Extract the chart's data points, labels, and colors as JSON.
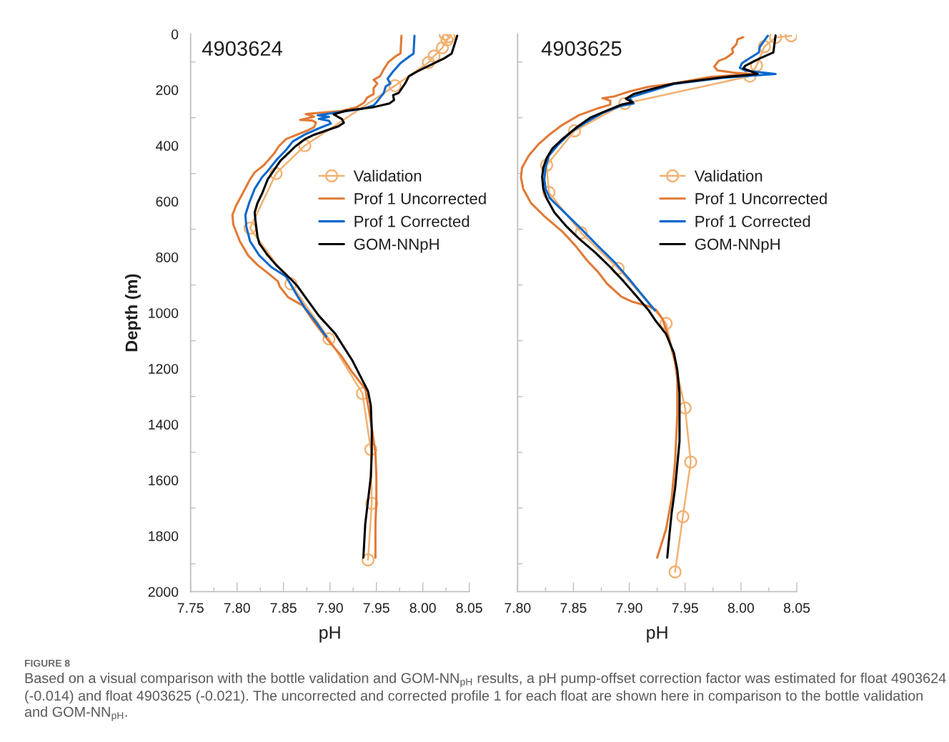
{
  "chart_data": [
    {
      "type": "line",
      "title": "4903624",
      "xlabel": "pH",
      "ylabel": "Depth (m)",
      "xlim": [
        7.75,
        8.05
      ],
      "ylim": [
        2000,
        0
      ],
      "legend": "right",
      "xticks": [
        {
          "value": 7.75,
          "label": "7.75"
        },
        {
          "value": 7.775,
          "label": null
        },
        {
          "value": 7.8,
          "label": "7.80"
        },
        {
          "value": 7.825,
          "label": null
        },
        {
          "value": 7.85,
          "label": "7.85"
        },
        {
          "value": 7.875,
          "label": null
        },
        {
          "value": 7.9,
          "label": "7.90"
        },
        {
          "value": 7.925,
          "label": null
        },
        {
          "value": 7.95,
          "label": "7.95"
        },
        {
          "value": 7.975,
          "label": null
        },
        {
          "value": 8.0,
          "label": "8.00"
        },
        {
          "value": 8.025,
          "label": null
        },
        {
          "value": 8.05,
          "label": "8.05"
        }
      ],
      "yticks": [
        0,
        {
          "value": 100,
          "label": null
        },
        200,
        {
          "value": 300,
          "label": null
        },
        400,
        {
          "value": 500,
          "label": null
        },
        600,
        {
          "value": 700,
          "label": null
        },
        800,
        {
          "value": 900,
          "label": null
        },
        1000,
        {
          "value": 1100,
          "label": null
        },
        1200,
        {
          "value": 1300,
          "label": null
        },
        1400,
        {
          "value": 1500,
          "label": null
        },
        1600,
        {
          "value": 1700,
          "label": null
        },
        1800,
        {
          "value": 1900,
          "label": null
        },
        2000
      ],
      "series": [
        {
          "name": "Validation",
          "color": "#f2b172",
          "marker": "circle",
          "x": [
            8.024,
            8.028,
            8.026,
            8.021,
            8.012,
            8.006,
            7.97,
            7.873,
            7.842,
            7.814,
            7.858,
            7.899,
            7.935,
            7.944,
            7.945,
            7.941
          ],
          "values": [
            0,
            9,
            21,
            49,
            79,
            102,
            185,
            400,
            500,
            696,
            896,
            1093,
            1289,
            1490,
            1683,
            1886
          ]
        },
        {
          "name": "Prof 1 Uncorrected",
          "color": "#e27a36",
          "x": [
            7.977,
            7.976,
            7.971,
            7.963,
            7.958,
            7.954,
            7.947,
            7.951,
            7.947,
            7.947,
            7.94,
            7.937,
            7.929,
            7.912,
            7.894,
            7.874,
            7.883,
            7.868,
            7.881,
            7.885,
            7.883,
            7.875,
            7.853,
            7.845,
            7.84,
            7.829,
            7.819,
            7.814,
            7.806,
            7.799,
            7.795,
            7.796,
            7.803,
            7.812,
            7.822,
            7.835,
            7.844,
            7.846,
            7.855,
            7.871,
            7.883,
            7.899,
            7.912,
            7.924,
            7.938,
            7.942,
            7.946,
            7.949,
            7.95,
            7.95,
            7.949,
            7.949
          ],
          "values": [
            6,
            69,
            79,
            100,
            126,
            151,
            164,
            177,
            194,
            215,
            228,
            245,
            262,
            276,
            281,
            287,
            296,
            308,
            310,
            317,
            334,
            347,
            376,
            402,
            428,
            470,
            496,
            521,
            572,
            615,
            649,
            683,
            743,
            794,
            828,
            862,
            887,
            906,
            944,
            974,
            1033,
            1102,
            1153,
            1213,
            1272,
            1349,
            1434,
            1503,
            1588,
            1673,
            1758,
            1878
          ]
        },
        {
          "name": "Prof 1 Corrected",
          "color": "#0a68cc",
          "x": [
            7.991,
            7.99,
            7.986,
            7.976,
            7.968,
            7.962,
            7.965,
            7.96,
            7.958,
            7.954,
            7.95,
            7.947,
            7.935,
            7.919,
            7.904,
            7.887,
            7.899,
            7.888,
            7.899,
            7.901,
            7.888,
            7.873,
            7.86,
            7.853,
            7.842,
            7.833,
            7.827,
            7.819,
            7.813,
            7.809,
            7.81,
            7.814,
            7.824,
            7.837,
            7.853,
            7.865,
            7.873,
            7.885,
            7.896
          ],
          "values": [
            6,
            70,
            79,
            104,
            134,
            160,
            177,
            188,
            211,
            228,
            245,
            256,
            268,
            276,
            283,
            291,
            297,
            304,
            311,
            321,
            338,
            360,
            385,
            415,
            453,
            491,
            513,
            555,
            606,
            649,
            691,
            743,
            794,
            836,
            870,
            940,
            982,
            1033,
            1085
          ]
        },
        {
          "name": "GOM-NNpH",
          "color": "#000000",
          "x": [
            8.037,
            8.031,
            8.023,
            7.994,
            7.985,
            7.981,
            7.974,
            7.968,
            7.969,
            7.964,
            7.947,
            7.917,
            7.904,
            7.913,
            7.915,
            7.909,
            7.883,
            7.873,
            7.863,
            7.855,
            7.847,
            7.84,
            7.833,
            7.827,
            7.822,
            7.819,
            7.82,
            7.822,
            7.824,
            7.832,
            7.842,
            7.858,
            7.865,
            7.876,
            7.888,
            7.906,
            7.924,
            7.941,
            7.944,
            7.945,
            7.945,
            7.944,
            7.941,
            7.938,
            7.936
          ],
          "values": [
            6,
            70,
            87,
            134,
            151,
            177,
            211,
            219,
            237,
            249,
            262,
            275,
            288,
            305,
            318,
            331,
            361,
            377,
            402,
            428,
            453,
            487,
            521,
            572,
            606,
            640,
            674,
            726,
            751,
            789,
            828,
            879,
            904,
            955,
            1010,
            1076,
            1170,
            1281,
            1332,
            1417,
            1503,
            1588,
            1673,
            1758,
            1878
          ]
        }
      ],
      "annotations": [
        "FIGURE 8",
        "Based on a visual comparison with the bottle validation and GOM-NN$_{pH}$ results, a pH pump-offset correction factor was estimated for float 4903624 (-0.014) and float 4903625 (-0.021). The uncorrected and corrected profile 1 for each float are shown here in comparison to the bottle validation and GOM-NN$_{pH}$."
      ]
    },
    {
      "type": "line",
      "title": "4903625",
      "xlabel": "pH",
      "xlim": [
        7.8,
        8.05
      ],
      "ylim": [
        2000,
        0
      ],
      "legend": "right",
      "tick_labels": "x",
      "xticks": [
        {
          "value": 7.8,
          "label": "7.80"
        },
        {
          "value": 7.825,
          "label": null
        },
        {
          "value": 7.85,
          "label": "7.85"
        },
        {
          "value": 7.875,
          "label": null
        },
        {
          "value": 7.9,
          "label": "7.90"
        },
        {
          "value": 7.925,
          "label": null
        },
        {
          "value": 7.95,
          "label": "7.95"
        },
        {
          "value": 7.975,
          "label": null
        },
        {
          "value": 8.0,
          "label": "8.00"
        },
        {
          "value": 8.025,
          "label": null
        },
        {
          "value": 8.05,
          "label": "8.05"
        }
      ],
      "yticks": [
        {
          "value": 100,
          "label": null
        },
        {
          "value": 300,
          "label": null
        },
        {
          "value": 500,
          "label": null
        },
        {
          "value": 700,
          "label": null
        },
        {
          "value": 900,
          "label": null
        },
        {
          "value": 1100,
          "label": null
        },
        {
          "value": 1300,
          "label": null
        },
        {
          "value": 1500,
          "label": null
        },
        {
          "value": 1700,
          "label": null
        },
        {
          "value": 1900,
          "label": null
        }
      ],
      "series": [
        {
          "name": "Validation",
          "color": "#f2b172",
          "marker": "circle",
          "x": [
            8.045,
            8.031,
            8.021,
            8.014,
            8.008,
            7.896,
            7.851,
            7.826,
            7.828,
            7.857,
            7.89,
            7.933,
            7.95,
            7.955,
            7.948,
            7.941
          ],
          "values": [
            6,
            12,
            45,
            113,
            151,
            249,
            347,
            470,
            568,
            713,
            840,
            1038,
            1341,
            1535,
            1731,
            1929
          ]
        },
        {
          "name": "Prof 1 Uncorrected",
          "color": "#e27a36",
          "x": [
            8.002,
            7.997,
            7.996,
            7.992,
            7.993,
            7.989,
            7.986,
            7.98,
            7.976,
            7.979,
            7.993,
            8.008,
            7.972,
            7.94,
            7.917,
            7.9,
            7.887,
            7.876,
            7.883,
            7.883,
            7.872,
            7.855,
            7.84,
            7.829,
            7.819,
            7.81,
            7.804,
            7.803,
            7.805,
            7.812,
            7.825,
            7.84,
            7.852,
            7.862,
            7.872,
            7.88,
            7.893,
            7.902,
            7.917,
            7.924,
            7.93,
            7.936,
            7.941,
            7.943,
            7.943,
            7.941,
            7.938,
            7.933,
            7.925
          ],
          "values": [
            11,
            19,
            36,
            53,
            66,
            79,
            87,
            96,
            117,
            130,
            138,
            143,
            154,
            177,
            189,
            206,
            223,
            230,
            239,
            253,
            266,
            291,
            326,
            359,
            394,
            436,
            479,
            513,
            555,
            606,
            657,
            708,
            760,
            811,
            853,
            895,
            942,
            959,
            976,
            989,
            1023,
            1100,
            1177,
            1237,
            1365,
            1536,
            1664,
            1775,
            1878
          ]
        },
        {
          "name": "Prof 1 Corrected",
          "color": "#0a68cc",
          "x": [
            8.024,
            8.022,
            8.017,
            8.016,
            8.008,
            8.001,
            7.999,
            8.004,
            8.031,
            7.983,
            7.94,
            7.919,
            7.9,
            7.904,
            7.891,
            7.876,
            7.861,
            7.848,
            7.836,
            7.828,
            7.825,
            7.824,
            7.825,
            7.829,
            7.84,
            7.855,
            7.872,
            7.887,
            7.9,
            7.912,
            7.923
          ],
          "values": [
            6,
            17,
            45,
            66,
            86,
            104,
            121,
            131,
            143,
            157,
            179,
            205,
            228,
            249,
            259,
            283,
            317,
            351,
            398,
            436,
            479,
            521,
            555,
            589,
            632,
            691,
            760,
            819,
            879,
            938,
            991
          ]
        },
        {
          "name": "GOM-NNpH",
          "color": "#000000",
          "x": [
            8.031,
            8.029,
            8.017,
            8.004,
            8.002,
            8.015,
            7.983,
            7.94,
            7.919,
            7.904,
            7.897,
            7.903,
            7.893,
            7.88,
            7.865,
            7.853,
            7.84,
            7.831,
            7.826,
            7.823,
            7.822,
            7.823,
            7.826,
            7.833,
            7.844,
            7.855,
            7.87,
            7.883,
            7.895,
            7.906,
            7.917,
            7.923,
            7.933,
            7.94,
            7.943,
            7.945,
            7.945,
            7.945,
            7.943,
            7.941,
            7.938,
            7.936,
            7.934
          ],
          "values": [
            5,
            66,
            87,
            113,
            123,
            143,
            155,
            177,
            198,
            215,
            232,
            245,
            253,
            274,
            300,
            334,
            377,
            411,
            445,
            479,
            513,
            555,
            589,
            640,
            691,
            734,
            785,
            836,
            887,
            938,
            989,
            1025,
            1076,
            1144,
            1204,
            1289,
            1375,
            1460,
            1545,
            1630,
            1716,
            1793,
            1878
          ]
        }
      ]
    }
  ]
}
